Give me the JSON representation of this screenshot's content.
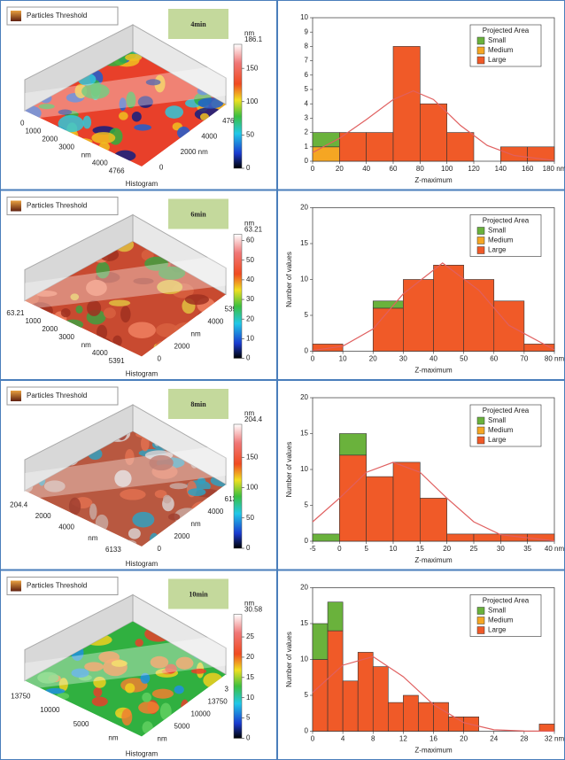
{
  "panels": [
    {
      "title": "Particles Threshold",
      "time": "4min",
      "histogram_label": "Histogram",
      "colorbar": {
        "unit": "nm",
        "lim": [
          0,
          186.1
        ],
        "ticks": [
          0,
          50,
          100,
          150
        ]
      },
      "left_axis": [
        "0",
        "1000",
        "2000",
        "3000",
        "nm",
        "4000",
        "4766"
      ],
      "right_axis": [
        "0",
        "2000 nm",
        "4000",
        "4766"
      ]
    },
    {
      "title": "Particles Threshold",
      "time": "6min",
      "histogram_label": "Histogram",
      "colorbar": {
        "unit": "nm",
        "lim": [
          0,
          63.21
        ],
        "ticks": [
          0,
          10,
          20,
          30,
          40,
          50,
          60
        ]
      },
      "left_axis": [
        "63.21",
        "1000",
        "2000",
        "3000",
        "nm",
        "4000",
        "5391"
      ],
      "right_axis": [
        "0",
        "2000",
        "nm",
        "4000",
        "5391"
      ]
    },
    {
      "title": "Particles Threshold",
      "time": "8min",
      "histogram_label": "Histogram",
      "colorbar": {
        "unit": "nm",
        "lim": [
          0,
          204.4
        ],
        "ticks": [
          0,
          50,
          100,
          150
        ]
      },
      "left_axis": [
        "204.4",
        "2000",
        "4000",
        "nm",
        "6133"
      ],
      "right_axis": [
        "0",
        "2000",
        "nm",
        "4000",
        "6133"
      ]
    },
    {
      "title": "Particles Threshold",
      "time": "10min",
      "histogram_label": "Histogram",
      "colorbar": {
        "unit": "nm",
        "lim": [
          0,
          30.58
        ],
        "ticks": [
          0,
          5,
          10,
          15,
          20,
          25
        ]
      },
      "left_axis": [
        "13750",
        "10000",
        "5000",
        "nm"
      ],
      "right_axis": [
        "nm",
        "5000",
        "10000",
        "13750",
        "3"
      ]
    }
  ],
  "chart_data": [
    {
      "type": "histogram",
      "x_label": "Z-maximum",
      "legend_title": "Projected Area",
      "legend": "upper right",
      "bins": [
        0,
        20,
        40,
        60,
        80,
        100,
        120,
        140,
        160,
        180
      ],
      "series": [
        {
          "name": "Small",
          "color": "#6ab23c",
          "values": [
            1,
            0,
            0,
            0,
            0,
            0,
            0,
            0,
            0
          ]
        },
        {
          "name": "Medium",
          "color": "#f5a623",
          "values": [
            1,
            0,
            0,
            0,
            0,
            0,
            0,
            0,
            0
          ]
        },
        {
          "name": "Large",
          "color": "#f05a28",
          "values": [
            0,
            2,
            2,
            8,
            4,
            2,
            0,
            1,
            1
          ]
        }
      ],
      "fit": {
        "color": "#e06060",
        "x": [
          0,
          20,
          40,
          60,
          75,
          90,
          110,
          130,
          150,
          180
        ],
        "y": [
          0.6,
          1.6,
          2.9,
          4.3,
          4.9,
          4.3,
          2.5,
          1.1,
          0.4,
          0.05
        ]
      },
      "xlim": [
        0,
        180
      ],
      "xticks": [
        0,
        20,
        40,
        60,
        80,
        100,
        120,
        140,
        160,
        {
          "value": 180,
          "label": "180 nm"
        }
      ],
      "ylim": [
        0,
        10
      ],
      "yticks": [
        0,
        1,
        2,
        3,
        4,
        5,
        6,
        7,
        8,
        9,
        10
      ]
    },
    {
      "type": "histogram",
      "x_label": "Z-maximum",
      "y_label": "Number of values",
      "legend_title": "Projected Area",
      "legend": "upper right",
      "bins": [
        0,
        10,
        20,
        30,
        40,
        50,
        60,
        70,
        80
      ],
      "series": [
        {
          "name": "Small",
          "color": "#6ab23c",
          "values": [
            0,
            0,
            1,
            0,
            0,
            0,
            0,
            0
          ]
        },
        {
          "name": "Medium",
          "color": "#f5a623",
          "values": [
            0,
            0,
            0,
            0,
            0,
            0,
            0,
            0
          ]
        },
        {
          "name": "Large",
          "color": "#f05a28",
          "values": [
            1,
            0,
            6,
            10,
            12,
            10,
            7,
            1
          ]
        }
      ],
      "fit": {
        "color": "#e06060",
        "x": [
          0,
          10,
          20,
          30,
          43,
          55,
          65,
          80
        ],
        "y": [
          0.1,
          0.7,
          3.1,
          8,
          12.3,
          8.5,
          3.6,
          0.2
        ]
      },
      "xlim": [
        0,
        80
      ],
      "xticks": [
        0,
        10,
        20,
        30,
        40,
        50,
        60,
        70,
        {
          "value": 80,
          "label": "80 nm"
        }
      ],
      "ylim": [
        0,
        20
      ],
      "yticks": [
        0,
        5,
        10,
        15,
        20
      ]
    },
    {
      "type": "histogram",
      "x_label": "Z-maximum",
      "y_label": "Number of values",
      "legend_title": "Projected Area",
      "legend": "upper right",
      "bins": [
        -5,
        0,
        5,
        10,
        15,
        20,
        25,
        30,
        35,
        40
      ],
      "series": [
        {
          "name": "Small",
          "color": "#6ab23c",
          "values": [
            1,
            3,
            0,
            0,
            0,
            0,
            0,
            0,
            0
          ]
        },
        {
          "name": "Medium",
          "color": "#f5a623",
          "values": [
            0,
            0,
            0,
            0,
            0,
            0,
            0,
            0,
            0
          ]
        },
        {
          "name": "Large",
          "color": "#f05a28",
          "values": [
            0,
            12,
            9,
            11,
            6,
            1,
            1,
            1,
            1
          ]
        }
      ],
      "fit": {
        "color": "#e06060",
        "x": [
          -5,
          0,
          5,
          10,
          15,
          20,
          25,
          30,
          40
        ],
        "y": [
          2.7,
          6,
          9.6,
          11,
          9.6,
          6,
          2.7,
          0.9,
          0.05
        ]
      },
      "xlim": [
        -5,
        40
      ],
      "xticks": [
        -5,
        0,
        5,
        10,
        15,
        20,
        25,
        30,
        35,
        {
          "value": 40,
          "label": "40 nm"
        }
      ],
      "ylim": [
        0,
        20
      ],
      "yticks": [
        0,
        5,
        10,
        15,
        20
      ]
    },
    {
      "type": "histogram",
      "x_label": "Z-maximum",
      "y_label": "Number of values",
      "legend_title": "Projected Area",
      "legend": "upper right",
      "bins": [
        0,
        2,
        4,
        6,
        8,
        10,
        12,
        14,
        16,
        18,
        20,
        22,
        24,
        26,
        28,
        30,
        32
      ],
      "series": [
        {
          "name": "Small",
          "color": "#6ab23c",
          "values": [
            5,
            4,
            0,
            0,
            0,
            0,
            0,
            0,
            0,
            0,
            0,
            0,
            0,
            0,
            0,
            0
          ]
        },
        {
          "name": "Medium",
          "color": "#f5a623",
          "values": [
            0,
            0,
            0,
            0,
            0,
            0,
            0,
            0,
            0,
            0,
            0,
            0,
            0,
            0,
            0,
            0
          ]
        },
        {
          "name": "Large",
          "color": "#f05a28",
          "values": [
            10,
            14,
            7,
            11,
            9,
            4,
            5,
            4,
            4,
            2,
            2,
            0,
            0,
            0,
            0,
            1
          ]
        }
      ],
      "fit": {
        "color": "#e06060",
        "x": [
          0,
          4,
          8,
          12,
          16,
          20,
          24,
          28,
          32
        ],
        "y": [
          5.4,
          9.2,
          10.4,
          7.6,
          3.7,
          1.2,
          0.2,
          0.03,
          0
        ]
      },
      "xlim": [
        0,
        32
      ],
      "xticks": [
        0,
        4,
        8,
        12,
        16,
        20,
        24,
        28,
        {
          "value": 32,
          "label": "32 nm"
        }
      ],
      "ylim": [
        0,
        20
      ],
      "yticks": [
        0,
        5,
        10,
        15,
        20
      ]
    }
  ]
}
